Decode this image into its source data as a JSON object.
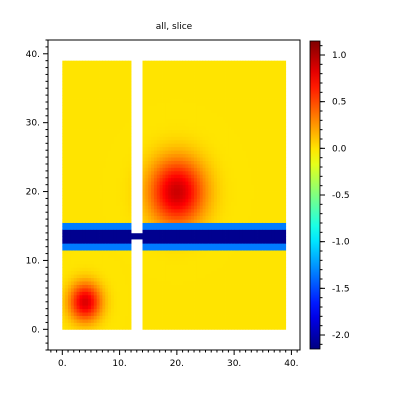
{
  "chart_data": {
    "type": "heatmap",
    "title": "all, slice",
    "xlabel": "",
    "ylabel": "",
    "xlim": [
      -2.5,
      41.5
    ],
    "ylim": [
      -3,
      42
    ],
    "x_ticks": [
      {
        "value": 0,
        "label": "0."
      },
      {
        "value": 10,
        "label": "10."
      },
      {
        "value": 20,
        "label": "20."
      },
      {
        "value": 30,
        "label": "30."
      },
      {
        "value": 40,
        "label": "40."
      }
    ],
    "y_ticks": [
      {
        "value": 0,
        "label": "0."
      },
      {
        "value": 10,
        "label": "10."
      },
      {
        "value": 20,
        "label": "20."
      },
      {
        "value": 30,
        "label": "30."
      },
      {
        "value": 40,
        "label": "40."
      }
    ],
    "colormap": "jet",
    "background_value": 0.0,
    "colorbar": {
      "range": [
        -2.15,
        1.15
      ],
      "ticks": [
        {
          "value": 1.0,
          "label": "1.0"
        },
        {
          "value": 0.5,
          "label": "0.5"
        },
        {
          "value": 0.0,
          "label": "0.0"
        },
        {
          "value": -0.5,
          "label": "-0.5"
        },
        {
          "value": -1.0,
          "label": "-1.0"
        },
        {
          "value": -1.5,
          "label": "-1.5"
        },
        {
          "value": -2.0,
          "label": "-2.0"
        }
      ]
    },
    "panels": [
      {
        "x": [
          0,
          12
        ],
        "y": [
          0,
          39
        ]
      },
      {
        "x": [
          14,
          39
        ],
        "y": [
          0,
          39
        ]
      }
    ],
    "sources": [
      {
        "x": 20,
        "y": 20,
        "peak": 0.9,
        "radius": 4.0
      },
      {
        "x": 4,
        "y": 4,
        "peak": 0.85,
        "radius": 2.3
      }
    ],
    "band": {
      "y_center": 13.5,
      "half_width": 0.9,
      "value": -2.1,
      "gap_x": [
        12,
        14
      ]
    }
  }
}
